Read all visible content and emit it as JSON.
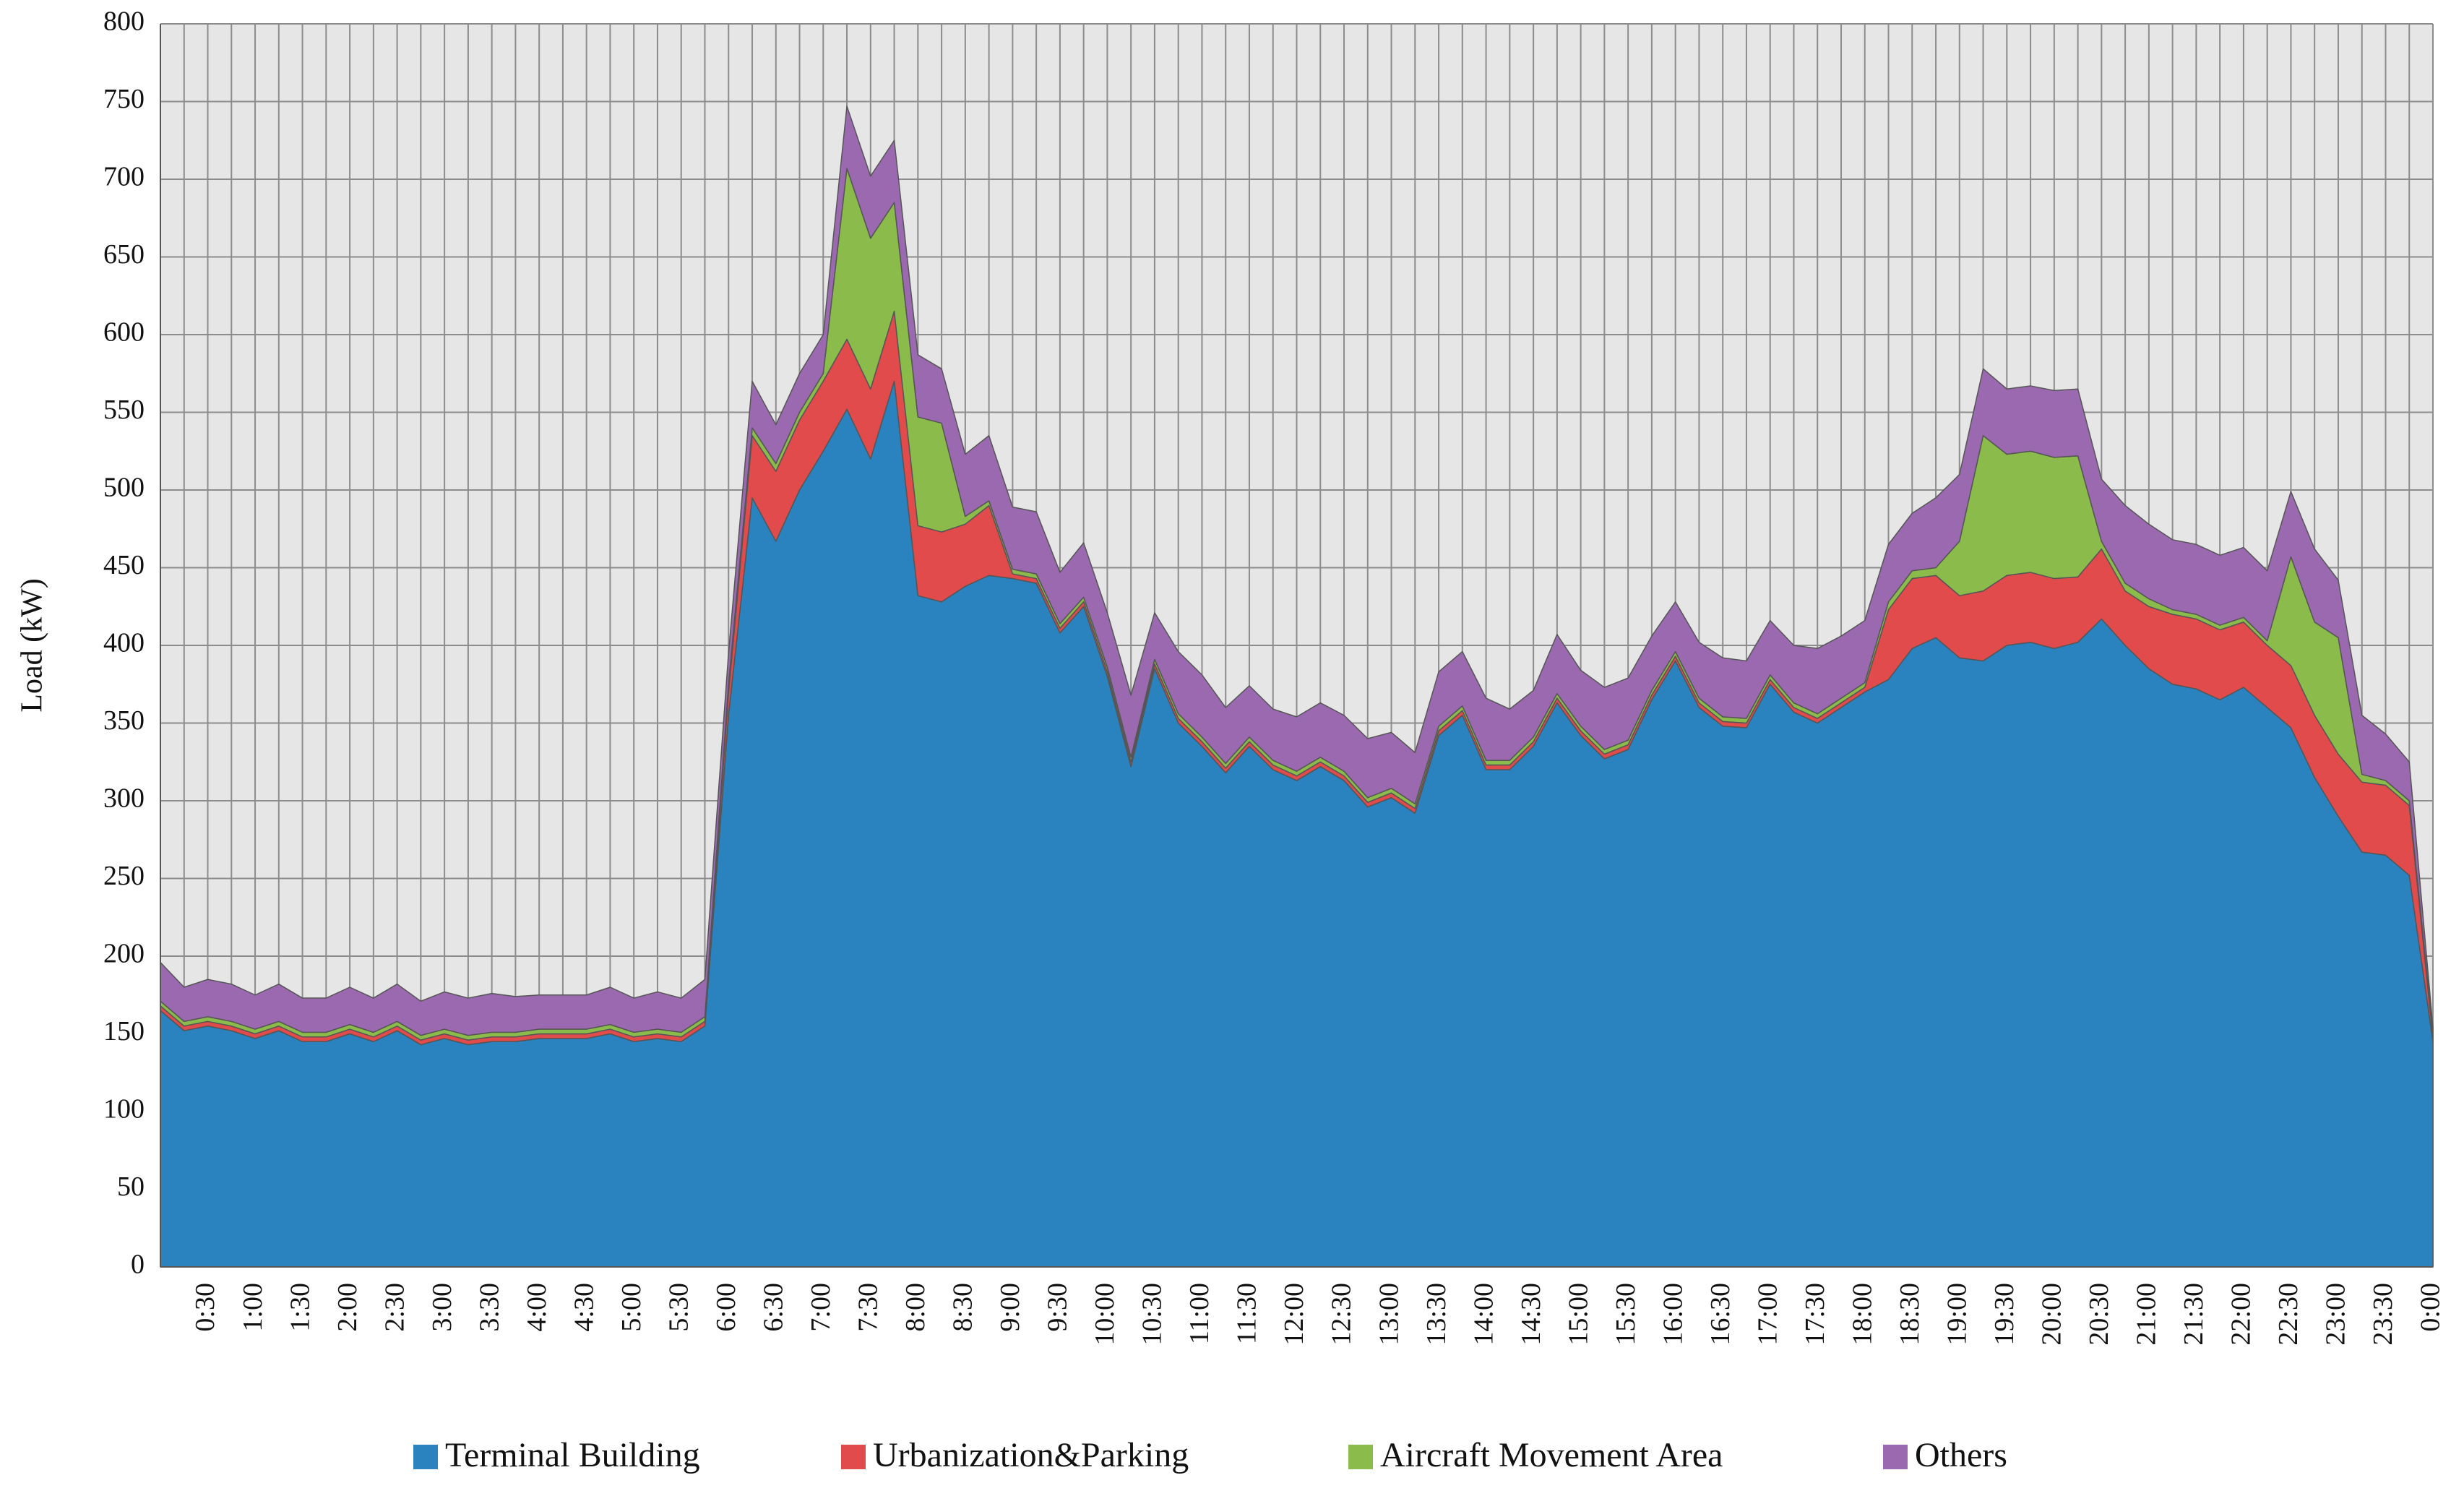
{
  "chart_data": {
    "type": "stacked_area",
    "y_label": "Load (kW)",
    "categories": [
      null,
      null,
      "0:30",
      null,
      "1:00",
      null,
      "1:30",
      null,
      "2:00",
      null,
      "2:30",
      null,
      "3:00",
      null,
      "3:30",
      null,
      "4:00",
      null,
      "4:30",
      null,
      "5:00",
      null,
      "5:30",
      null,
      "6:00",
      null,
      "6:30",
      null,
      "7:00",
      null,
      "7:30",
      null,
      "8:00",
      null,
      "8:30",
      null,
      "9:00",
      null,
      "9:30",
      null,
      "10:00",
      null,
      "10:30",
      null,
      "11:00",
      null,
      "11:30",
      null,
      "12:00",
      null,
      "12:30",
      null,
      "13:00",
      null,
      "13:30",
      null,
      "14:00",
      null,
      "14:30",
      null,
      "15:00",
      null,
      "15:30",
      null,
      "16:00",
      null,
      "16:30",
      null,
      "17:00",
      null,
      "17:30",
      null,
      "18:00",
      null,
      "18:30",
      null,
      "19:00",
      null,
      "19:30",
      null,
      "20:00",
      null,
      "20:30",
      null,
      "21:00",
      null,
      "21:30",
      null,
      "22:00",
      null,
      "22:30",
      null,
      "23:00",
      null,
      "23:30",
      null,
      "0:00"
    ],
    "series": [
      {
        "name": "Terminal Building",
        "color": "#2a82bf",
        "values": [
          165,
          152,
          155,
          152,
          147,
          152,
          145,
          145,
          150,
          145,
          152,
          143,
          147,
          143,
          145,
          145,
          147,
          147,
          147,
          150,
          145,
          147,
          145,
          155,
          355,
          495,
          467,
          500,
          525,
          552,
          520,
          570,
          432,
          428,
          438,
          445,
          443,
          440,
          408,
          425,
          380,
          322,
          385,
          350,
          335,
          318,
          335,
          320,
          313,
          322,
          313,
          296,
          302,
          292,
          342,
          355,
          320,
          320,
          335,
          363,
          342,
          327,
          333,
          365,
          390,
          360,
          348,
          347,
          375,
          357,
          350,
          360,
          370,
          378,
          398,
          405,
          392,
          390,
          400,
          402,
          398,
          402,
          417,
          400,
          385,
          375,
          372,
          365,
          373,
          360,
          347,
          315,
          290,
          267,
          265,
          252,
          145
        ]
      },
      {
        "name": "Urbanization&Parking",
        "color": "#e14b4b",
        "values": [
          3,
          3,
          3,
          3,
          3,
          3,
          3,
          3,
          3,
          3,
          3,
          3,
          3,
          3,
          3,
          3,
          3,
          3,
          3,
          3,
          3,
          3,
          3,
          3,
          15,
          40,
          45,
          45,
          45,
          45,
          45,
          45,
          45,
          45,
          40,
          45,
          3,
          3,
          3,
          3,
          3,
          3,
          3,
          3,
          3,
          3,
          3,
          3,
          3,
          3,
          3,
          3,
          3,
          3,
          3,
          3,
          3,
          3,
          3,
          3,
          3,
          3,
          3,
          3,
          3,
          3,
          3,
          3,
          3,
          3,
          3,
          3,
          3,
          45,
          45,
          40,
          40,
          45,
          45,
          45,
          45,
          42,
          45,
          35,
          40,
          45,
          45,
          45,
          42,
          40,
          40,
          40,
          40,
          45,
          45,
          45,
          3
        ]
      },
      {
        "name": "Aircraft Movement Area",
        "color": "#8bbb4b",
        "values": [
          3,
          3,
          3,
          3,
          3,
          3,
          3,
          3,
          3,
          3,
          3,
          3,
          3,
          3,
          3,
          3,
          3,
          3,
          3,
          3,
          3,
          3,
          3,
          3,
          5,
          5,
          5,
          5,
          5,
          110,
          97,
          70,
          70,
          70,
          5,
          3,
          3,
          3,
          3,
          3,
          3,
          3,
          3,
          3,
          3,
          3,
          3,
          3,
          3,
          3,
          3,
          3,
          3,
          3,
          3,
          3,
          3,
          3,
          3,
          3,
          3,
          3,
          3,
          3,
          3,
          3,
          3,
          3,
          3,
          3,
          3,
          3,
          3,
          5,
          5,
          5,
          35,
          100,
          78,
          78,
          78,
          78,
          5,
          5,
          5,
          3,
          3,
          3,
          3,
          3,
          70,
          60,
          75,
          5,
          3,
          3,
          3
        ]
      },
      {
        "name": "Others",
        "color": "#9a69af",
        "values": [
          25,
          22,
          24,
          24,
          22,
          24,
          22,
          22,
          24,
          22,
          24,
          22,
          24,
          24,
          25,
          23,
          22,
          22,
          22,
          24,
          22,
          24,
          22,
          24,
          20,
          30,
          25,
          25,
          25,
          40,
          40,
          40,
          40,
          35,
          40,
          42,
          40,
          40,
          33,
          35,
          35,
          40,
          30,
          40,
          40,
          36,
          33,
          33,
          35,
          35,
          36,
          38,
          36,
          33,
          35,
          35,
          40,
          33,
          30,
          38,
          36,
          40,
          40,
          35,
          32,
          36,
          38,
          37,
          35,
          37,
          42,
          40,
          40,
          37,
          37,
          45,
          43,
          43,
          42,
          42,
          43,
          43,
          40,
          50,
          48,
          45,
          45,
          45,
          45,
          45,
          42,
          47,
          37,
          38,
          30,
          25,
          3
        ]
      }
    ],
    "ylim": [
      0,
      800
    ],
    "yticks": [
      0,
      50,
      100,
      150,
      200,
      250,
      300,
      350,
      400,
      450,
      500,
      550,
      600,
      650,
      700,
      750,
      800
    ],
    "grid": true,
    "legend": "bottom"
  }
}
